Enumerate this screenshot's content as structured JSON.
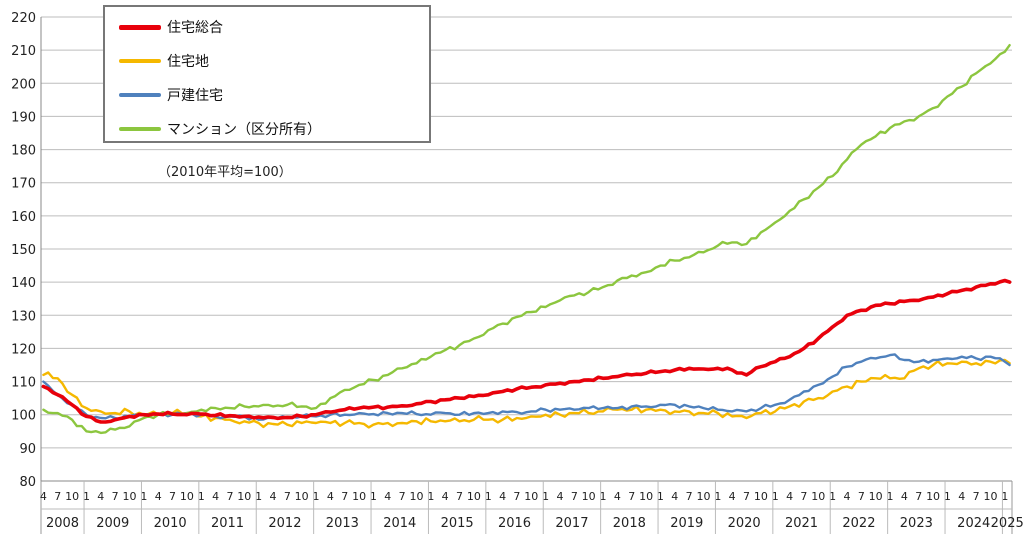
{
  "chart_data": {
    "type": "line",
    "title": "",
    "note": "（2010年平均=100）",
    "ylim": [
      80,
      220
    ],
    "yticks": [
      80,
      90,
      100,
      110,
      120,
      130,
      140,
      150,
      160,
      170,
      180,
      190,
      200,
      210,
      220
    ],
    "grid": true,
    "legend": "top-left",
    "month_ticks": [
      "4",
      "7",
      "10",
      "1"
    ],
    "years": [
      "2008",
      "2009",
      "2010",
      "2011",
      "2012",
      "2013",
      "2014",
      "2015",
      "2016",
      "2017",
      "2018",
      "2019",
      "2020",
      "2021",
      "2022",
      "2023",
      "2024",
      "2025"
    ],
    "series": [
      {
        "name": "住宅総合",
        "color": "#e8000b",
        "points": [
          [
            "2008-04",
            108.5
          ],
          [
            "2008-07",
            106
          ],
          [
            "2008-10",
            103
          ],
          [
            "2009-01",
            99.5
          ],
          [
            "2009-04",
            97.8
          ],
          [
            "2009-07",
            98.5
          ],
          [
            "2009-10",
            99.5
          ],
          [
            "2010-01",
            100
          ],
          [
            "2010-04",
            100.2
          ],
          [
            "2010-07",
            100.2
          ],
          [
            "2010-10",
            100
          ],
          [
            "2011-01",
            100.2
          ],
          [
            "2011-04",
            99.8
          ],
          [
            "2011-07",
            99.7
          ],
          [
            "2011-10",
            99.5
          ],
          [
            "2012-01",
            99.3
          ],
          [
            "2012-04",
            99.2
          ],
          [
            "2012-07",
            99.2
          ],
          [
            "2012-10",
            99.5
          ],
          [
            "2013-01",
            100
          ],
          [
            "2013-04",
            100.8
          ],
          [
            "2013-07",
            101.5
          ],
          [
            "2013-10",
            102
          ],
          [
            "2014-01",
            102.3
          ],
          [
            "2014-04",
            102.3
          ],
          [
            "2014-07",
            102.7
          ],
          [
            "2014-10",
            103.3
          ],
          [
            "2015-01",
            104
          ],
          [
            "2015-04",
            104.5
          ],
          [
            "2015-07",
            105
          ],
          [
            "2015-10",
            105.5
          ],
          [
            "2016-01",
            106
          ],
          [
            "2016-04",
            107
          ],
          [
            "2016-07",
            107.8
          ],
          [
            "2016-10",
            108.3
          ],
          [
            "2017-01",
            109
          ],
          [
            "2017-04",
            109.5
          ],
          [
            "2017-07",
            110
          ],
          [
            "2017-10",
            110.5
          ],
          [
            "2018-01",
            111
          ],
          [
            "2018-04",
            111.5
          ],
          [
            "2018-07",
            112
          ],
          [
            "2018-10",
            112.5
          ],
          [
            "2019-01",
            113
          ],
          [
            "2019-04",
            113.5
          ],
          [
            "2019-07",
            114
          ],
          [
            "2019-10",
            113.8
          ],
          [
            "2020-01",
            114
          ],
          [
            "2020-04",
            113.5
          ],
          [
            "2020-07",
            112
          ],
          [
            "2020-10",
            114.5
          ],
          [
            "2021-01",
            116
          ],
          [
            "2021-04",
            117.5
          ],
          [
            "2021-07",
            120
          ],
          [
            "2021-10",
            123
          ],
          [
            "2022-01",
            126.5
          ],
          [
            "2022-04",
            130
          ],
          [
            "2022-07",
            131.5
          ],
          [
            "2022-10",
            133
          ],
          [
            "2023-01",
            133.5
          ],
          [
            "2023-04",
            134.2
          ],
          [
            "2023-07",
            134.5
          ],
          [
            "2023-10",
            135.5
          ],
          [
            "2024-01",
            136.5
          ],
          [
            "2024-04",
            137.5
          ],
          [
            "2024-07",
            138.5
          ],
          [
            "2024-10",
            139.5
          ],
          [
            "2025-01",
            140.5
          ],
          [
            "2025-02",
            140
          ]
        ]
      },
      {
        "name": "住宅地",
        "color": "#f5b800",
        "points": [
          [
            "2008-04",
            112
          ],
          [
            "2008-07",
            111
          ],
          [
            "2008-10",
            106
          ],
          [
            "2009-01",
            102
          ],
          [
            "2009-04",
            101
          ],
          [
            "2009-07",
            100.5
          ],
          [
            "2009-10",
            101
          ],
          [
            "2010-01",
            100
          ],
          [
            "2010-04",
            100
          ],
          [
            "2010-07",
            100.5
          ],
          [
            "2010-10",
            100.5
          ],
          [
            "2011-01",
            99.5
          ],
          [
            "2011-04",
            99
          ],
          [
            "2011-07",
            98.5
          ],
          [
            "2011-10",
            98
          ],
          [
            "2012-01",
            97.5
          ],
          [
            "2012-04",
            97.2
          ],
          [
            "2012-07",
            97
          ],
          [
            "2012-10",
            97.5
          ],
          [
            "2013-01",
            97.5
          ],
          [
            "2013-04",
            97.5
          ],
          [
            "2013-07",
            97.5
          ],
          [
            "2013-10",
            97.5
          ],
          [
            "2014-01",
            97
          ],
          [
            "2014-04",
            97.5
          ],
          [
            "2014-07",
            97.5
          ],
          [
            "2014-10",
            98
          ],
          [
            "2015-01",
            98
          ],
          [
            "2015-04",
            98
          ],
          [
            "2015-07",
            98
          ],
          [
            "2015-10",
            98.5
          ],
          [
            "2016-01",
            98.5
          ],
          [
            "2016-04",
            98.5
          ],
          [
            "2016-07",
            99
          ],
          [
            "2016-10",
            99.5
          ],
          [
            "2017-01",
            100
          ],
          [
            "2017-04",
            100
          ],
          [
            "2017-07",
            100.5
          ],
          [
            "2017-10",
            100.5
          ],
          [
            "2018-01",
            101
          ],
          [
            "2018-04",
            101.5
          ],
          [
            "2018-07",
            101.5
          ],
          [
            "2018-10",
            101.5
          ],
          [
            "2019-01",
            101.5
          ],
          [
            "2019-04",
            101
          ],
          [
            "2019-07",
            101
          ],
          [
            "2019-10",
            100.5
          ],
          [
            "2020-01",
            100.5
          ],
          [
            "2020-04",
            99.5
          ],
          [
            "2020-07",
            99
          ],
          [
            "2020-10",
            100.5
          ],
          [
            "2021-01",
            101
          ],
          [
            "2021-04",
            102.5
          ],
          [
            "2021-07",
            104
          ],
          [
            "2021-10",
            105
          ],
          [
            "2022-01",
            107
          ],
          [
            "2022-04",
            108.5
          ],
          [
            "2022-07",
            110
          ],
          [
            "2022-10",
            111
          ],
          [
            "2023-01",
            111
          ],
          [
            "2023-04",
            111
          ],
          [
            "2023-07",
            114
          ],
          [
            "2023-10",
            115
          ],
          [
            "2024-01",
            115.5
          ],
          [
            "2024-04",
            116
          ],
          [
            "2024-07",
            115.5
          ],
          [
            "2024-10",
            116
          ],
          [
            "2025-01",
            116.5
          ],
          [
            "2025-02",
            115.5
          ]
        ]
      },
      {
        "name": "戸建住宅",
        "color": "#4f81bd",
        "points": [
          [
            "2008-04",
            110
          ],
          [
            "2008-07",
            106
          ],
          [
            "2008-10",
            103
          ],
          [
            "2009-01",
            100
          ],
          [
            "2009-04",
            99
          ],
          [
            "2009-07",
            99
          ],
          [
            "2009-10",
            99.5
          ],
          [
            "2010-01",
            100
          ],
          [
            "2010-04",
            100
          ],
          [
            "2010-07",
            100
          ],
          [
            "2010-10",
            100.5
          ],
          [
            "2011-01",
            100
          ],
          [
            "2011-04",
            99.5
          ],
          [
            "2011-07",
            99.5
          ],
          [
            "2011-10",
            99.5
          ],
          [
            "2012-01",
            98.5
          ],
          [
            "2012-04",
            99
          ],
          [
            "2012-07",
            99
          ],
          [
            "2012-10",
            99.5
          ],
          [
            "2013-01",
            99.5
          ],
          [
            "2013-04",
            100
          ],
          [
            "2013-07",
            100
          ],
          [
            "2013-10",
            100.5
          ],
          [
            "2014-01",
            100.2
          ],
          [
            "2014-04",
            100.5
          ],
          [
            "2014-07",
            100.5
          ],
          [
            "2014-10",
            100.2
          ],
          [
            "2015-01",
            100
          ],
          [
            "2015-04",
            100.5
          ],
          [
            "2015-07",
            100
          ],
          [
            "2015-10",
            100.5
          ],
          [
            "2016-01",
            100.5
          ],
          [
            "2016-04",
            101
          ],
          [
            "2016-07",
            100.8
          ],
          [
            "2016-10",
            101
          ],
          [
            "2017-01",
            101.5
          ],
          [
            "2017-04",
            101.5
          ],
          [
            "2017-07",
            101.5
          ],
          [
            "2017-10",
            102
          ],
          [
            "2018-01",
            102
          ],
          [
            "2018-04",
            102
          ],
          [
            "2018-07",
            102.5
          ],
          [
            "2018-10",
            102.5
          ],
          [
            "2019-01",
            103
          ],
          [
            "2019-04",
            103
          ],
          [
            "2019-07",
            102.5
          ],
          [
            "2019-10",
            102
          ],
          [
            "2020-01",
            101.5
          ],
          [
            "2020-04",
            101
          ],
          [
            "2020-07",
            101
          ],
          [
            "2020-10",
            102
          ],
          [
            "2021-01",
            103
          ],
          [
            "2021-04",
            104.5
          ],
          [
            "2021-07",
            107
          ],
          [
            "2021-10",
            109
          ],
          [
            "2022-01",
            111.5
          ],
          [
            "2022-04",
            114.5
          ],
          [
            "2022-07",
            116
          ],
          [
            "2022-10",
            117
          ],
          [
            "2023-01",
            118
          ],
          [
            "2023-04",
            116.5
          ],
          [
            "2023-07",
            116
          ],
          [
            "2023-10",
            116.5
          ],
          [
            "2024-01",
            117
          ],
          [
            "2024-04",
            117.5
          ],
          [
            "2024-07",
            117
          ],
          [
            "2024-10",
            117.5
          ],
          [
            "2025-01",
            116
          ],
          [
            "2025-02",
            115
          ]
        ]
      },
      {
        "name": "マンション（区分所有）",
        "color": "#8cc63f",
        "points": [
          [
            "2008-04",
            101.5
          ],
          [
            "2008-07",
            100.5
          ],
          [
            "2008-10",
            98.5
          ],
          [
            "2009-01",
            95
          ],
          [
            "2009-04",
            94.5
          ],
          [
            "2009-07",
            95.5
          ],
          [
            "2009-10",
            96.5
          ],
          [
            "2010-01",
            99
          ],
          [
            "2010-04",
            100
          ],
          [
            "2010-07",
            100.5
          ],
          [
            "2010-10",
            100.5
          ],
          [
            "2011-01",
            101.5
          ],
          [
            "2011-04",
            102
          ],
          [
            "2011-07",
            102
          ],
          [
            "2011-10",
            102.5
          ],
          [
            "2012-01",
            102.5
          ],
          [
            "2012-04",
            102.5
          ],
          [
            "2012-07",
            103
          ],
          [
            "2012-10",
            102.5
          ],
          [
            "2013-01",
            102
          ],
          [
            "2013-04",
            105
          ],
          [
            "2013-07",
            107.5
          ],
          [
            "2013-10",
            109
          ],
          [
            "2014-01",
            110.5
          ],
          [
            "2014-04",
            112
          ],
          [
            "2014-07",
            114
          ],
          [
            "2014-10",
            115.5
          ],
          [
            "2015-01",
            117.5
          ],
          [
            "2015-04",
            119.5
          ],
          [
            "2015-07",
            121
          ],
          [
            "2015-10",
            123
          ],
          [
            "2016-01",
            125.5
          ],
          [
            "2016-04",
            127.5
          ],
          [
            "2016-07",
            129.5
          ],
          [
            "2016-10",
            131
          ],
          [
            "2017-01",
            132.5
          ],
          [
            "2017-04",
            134.5
          ],
          [
            "2017-07",
            136
          ],
          [
            "2017-10",
            137
          ],
          [
            "2018-01",
            138.5
          ],
          [
            "2018-04",
            140.5
          ],
          [
            "2018-07",
            142
          ],
          [
            "2018-10",
            143
          ],
          [
            "2019-01",
            145
          ],
          [
            "2019-04",
            146.5
          ],
          [
            "2019-07",
            147.5
          ],
          [
            "2019-10",
            149
          ],
          [
            "2020-01",
            151
          ],
          [
            "2020-04",
            152
          ],
          [
            "2020-07",
            151.5
          ],
          [
            "2020-10",
            155
          ],
          [
            "2021-01",
            158
          ],
          [
            "2021-04",
            161.5
          ],
          [
            "2021-07",
            165
          ],
          [
            "2021-10",
            168.5
          ],
          [
            "2022-01",
            172
          ],
          [
            "2022-04",
            177
          ],
          [
            "2022-07",
            181.5
          ],
          [
            "2022-10",
            184
          ],
          [
            "2023-01",
            186.5
          ],
          [
            "2023-04",
            188.5
          ],
          [
            "2023-07",
            190
          ],
          [
            "2023-10",
            192.5
          ],
          [
            "2024-01",
            196
          ],
          [
            "2024-04",
            199
          ],
          [
            "2024-07",
            203
          ],
          [
            "2024-10",
            206
          ],
          [
            "2025-01",
            209.5
          ],
          [
            "2025-02",
            211.5
          ]
        ]
      }
    ]
  }
}
